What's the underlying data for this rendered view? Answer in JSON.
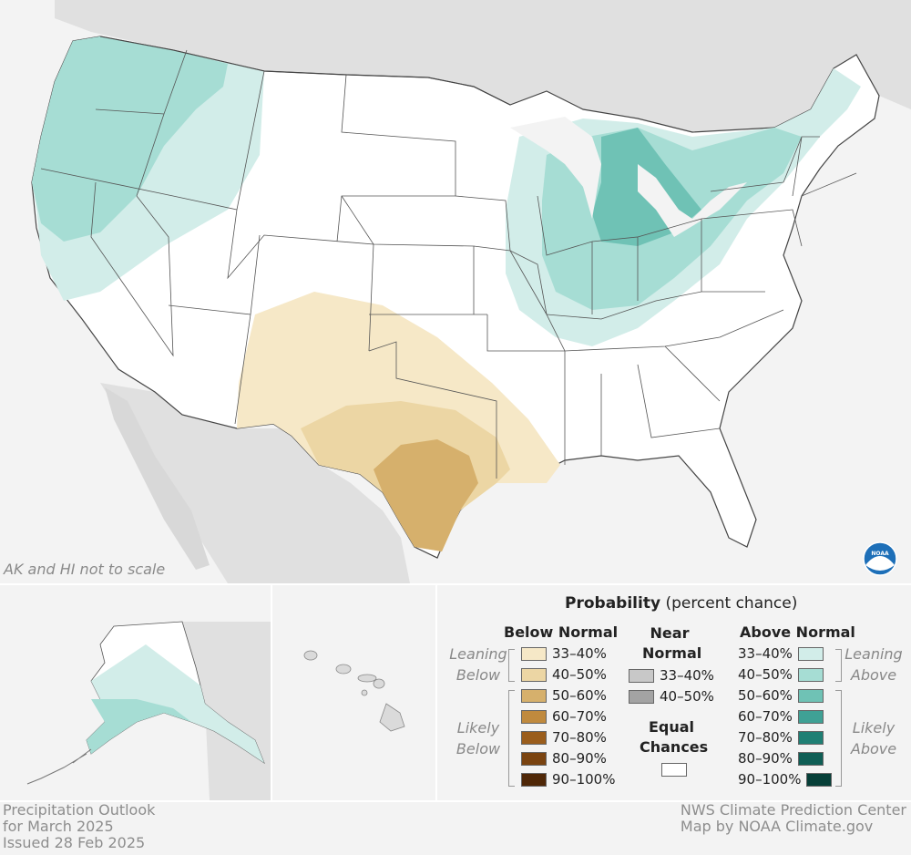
{
  "map": {
    "inset_note": "AK and HI not to scale"
  },
  "legend": {
    "title_bold": "Probability",
    "title_rest": "(percent chance)",
    "below": {
      "header": "Below Normal",
      "leaning_label_1": "Leaning",
      "leaning_label_2": "Below",
      "likely_label_1": "Likely",
      "likely_label_2": "Below",
      "items": [
        {
          "label": "33–40%",
          "color": "#f6e8c7"
        },
        {
          "label": "40–50%",
          "color": "#ecd6a4"
        },
        {
          "label": "50–60%",
          "color": "#d6b06c"
        },
        {
          "label": "60–70%",
          "color": "#c08a3e"
        },
        {
          "label": "70–80%",
          "color": "#9a5d1c"
        },
        {
          "label": "80–90%",
          "color": "#7a4310"
        },
        {
          "label": "90–100%",
          "color": "#4f2707"
        }
      ]
    },
    "near": {
      "header_1": "Near",
      "header_2": "Normal",
      "items": [
        {
          "label": "33–40%",
          "color": "#c8c8c8"
        },
        {
          "label": "40–50%",
          "color": "#a3a3a3"
        }
      ]
    },
    "equal": {
      "header_1": "Equal",
      "header_2": "Chances",
      "color": "#ffffff"
    },
    "above": {
      "header": "Above Normal",
      "leaning_label_1": "Leaning",
      "leaning_label_2": "Above",
      "likely_label_1": "Likely",
      "likely_label_2": "Above",
      "items": [
        {
          "label": "33–40%",
          "color": "#d2ede9"
        },
        {
          "label": "40–50%",
          "color": "#a6ddd4"
        },
        {
          "label": "50–60%",
          "color": "#6fc2b5"
        },
        {
          "label": "60–70%",
          "color": "#3fa195"
        },
        {
          "label": "70–80%",
          "color": "#1f7f74"
        },
        {
          "label": "80–90%",
          "color": "#0f5e55"
        },
        {
          "label": "90–100%",
          "color": "#063f38"
        }
      ]
    }
  },
  "footer": {
    "left_1": "Precipitation Outlook",
    "left_2": "for March 2025",
    "left_3": "Issued 28 Feb 2025",
    "right_1": "NWS Climate Prediction Center",
    "right_2": "Map by NOAA Climate.gov"
  },
  "colors": {
    "land_outside": "#e0e0e0",
    "water": "#f3f3f3",
    "equal_chances": "#ffffff",
    "state_border": "#555555",
    "noaa_blue": "#1d6fb8"
  },
  "icons": {
    "noaa": "noaa-logo-icon"
  }
}
